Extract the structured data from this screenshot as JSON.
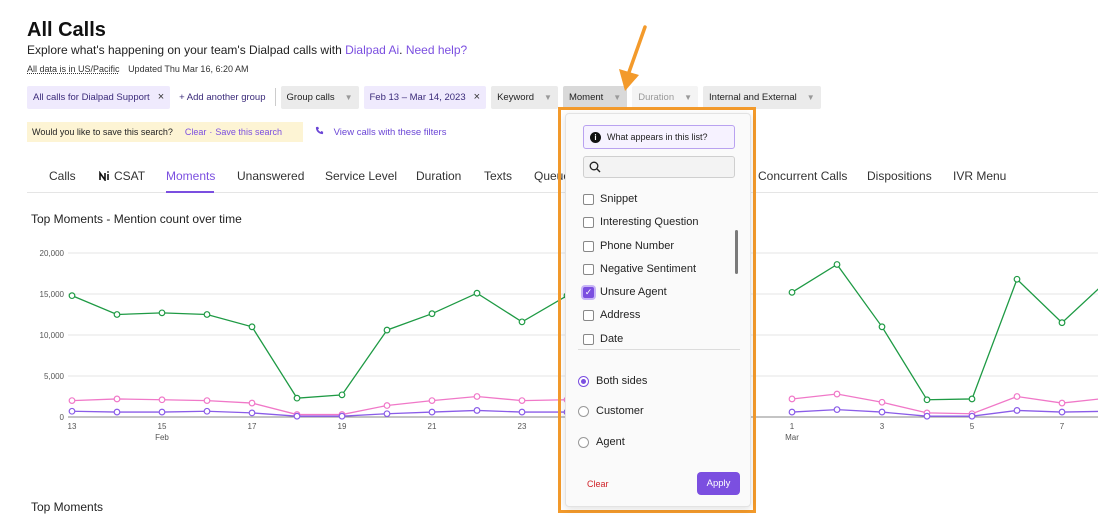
{
  "header": {
    "title": "All Calls",
    "subtitle_prefix": "Explore what's happening on your team's Dialpad calls with ",
    "subtitle_link": "Dialpad Ai",
    "subtitle_sep": ". ",
    "help_link": "Need help?",
    "timezone_note": "All data is in US/Pacific",
    "updated": "Updated Thu Mar 16, 6:20 AM"
  },
  "filters": {
    "chips": [
      {
        "label": "All calls for Dialpad Support",
        "style": "purple",
        "removable": true
      },
      {
        "label": "+ Add another group",
        "style": "plain"
      },
      {
        "label": "Group calls",
        "style": "gray-caret"
      },
      {
        "label": "Feb 13 – Mar 14, 2023",
        "style": "purple",
        "removable": true
      },
      {
        "label": "Keyword",
        "style": "gray-caret"
      },
      {
        "label": "Moment",
        "style": "gray-caret-active"
      },
      {
        "label": "Duration",
        "style": "gray-caret-disabled"
      },
      {
        "label": "Internal and External",
        "style": "gray-caret"
      }
    ],
    "remove_glyph": "×",
    "caret_glyph": "▼"
  },
  "save_banner": {
    "question": "Would you like to save this search?",
    "clear": "Clear",
    "dot": "·",
    "save": "Save this search"
  },
  "view_calls": "View calls with these filters",
  "tabs": {
    "items": [
      "Calls",
      "CSAT",
      "Moments",
      "Unanswered",
      "Service Level",
      "Duration",
      "Texts",
      "Queue",
      "Concurrent Calls",
      "Dispositions",
      "IVR Menu"
    ],
    "active": "Moments"
  },
  "chart_title": "Top Moments - Mention count over time",
  "section_title": "Top Moments",
  "chart_data": {
    "type": "line",
    "title": "Top Moments - Mention count over time",
    "y_ticks": [
      "20,000",
      "15,000",
      "10,000",
      "5,000",
      "0"
    ],
    "ylim": [
      0,
      20000
    ],
    "x_tick_labels": [
      {
        "day": "13",
        "month": "Feb"
      },
      {
        "day": "15"
      },
      {
        "day": "17"
      },
      {
        "day": "19"
      },
      {
        "day": "21"
      },
      {
        "day": "23"
      },
      {
        "day": "1",
        "month": "Mar"
      },
      {
        "day": "3"
      },
      {
        "day": "5"
      },
      {
        "day": "7"
      }
    ],
    "x_days": [
      "Feb 13",
      "Feb 14",
      "Feb 15",
      "Feb 16",
      "Feb 17",
      "Feb 18",
      "Feb 19",
      "Feb 20",
      "Feb 21",
      "Feb 22",
      "Feb 23",
      "Feb 24",
      "Feb 25",
      "Feb 26",
      "Feb 27",
      "Feb 28",
      "Mar 1",
      "Mar 2",
      "Mar 3",
      "Mar 4",
      "Mar 5",
      "Mar 6",
      "Mar 7",
      "Mar 8"
    ],
    "grid": true,
    "series": [
      {
        "color": "#1e9a44",
        "values": [
          14800,
          12500,
          12700,
          12500,
          11000,
          2300,
          2700,
          10600,
          12600,
          15100,
          11600,
          14800,
          null,
          null,
          null,
          null,
          15200,
          18600,
          11000,
          2100,
          2200,
          16800,
          11500,
          16600
        ]
      },
      {
        "color": "#f078c8",
        "values": [
          2000,
          2200,
          2100,
          2000,
          1700,
          300,
          300,
          1400,
          2000,
          2500,
          2000,
          2100,
          null,
          null,
          null,
          null,
          2200,
          2800,
          1800,
          500,
          400,
          2500,
          1700,
          2300
        ]
      },
      {
        "color": "#8a5ce8",
        "values": [
          700,
          600,
          600,
          700,
          500,
          100,
          100,
          400,
          600,
          800,
          600,
          600,
          null,
          null,
          null,
          null,
          600,
          900,
          600,
          100,
          100,
          800,
          600,
          700
        ]
      }
    ]
  },
  "dropdown": {
    "info_label": "What appears in this list?",
    "search_placeholder": "",
    "options": [
      {
        "label": "Snippet",
        "checked": false
      },
      {
        "label": "Interesting Question",
        "checked": false
      },
      {
        "label": "Phone Number",
        "checked": false
      },
      {
        "label": "Negative Sentiment",
        "checked": false
      },
      {
        "label": "Unsure Agent",
        "checked": true
      },
      {
        "label": "Address",
        "checked": false
      },
      {
        "label": "Date",
        "checked": false
      }
    ],
    "sides": [
      {
        "label": "Both sides",
        "selected": true
      },
      {
        "label": "Customer",
        "selected": false
      },
      {
        "label": "Agent",
        "selected": false
      }
    ],
    "clear": "Clear",
    "apply": "Apply"
  },
  "colors": {
    "accent": "#7b4fe0",
    "highlight": "#f39a2b",
    "clear": "#d0232a"
  }
}
